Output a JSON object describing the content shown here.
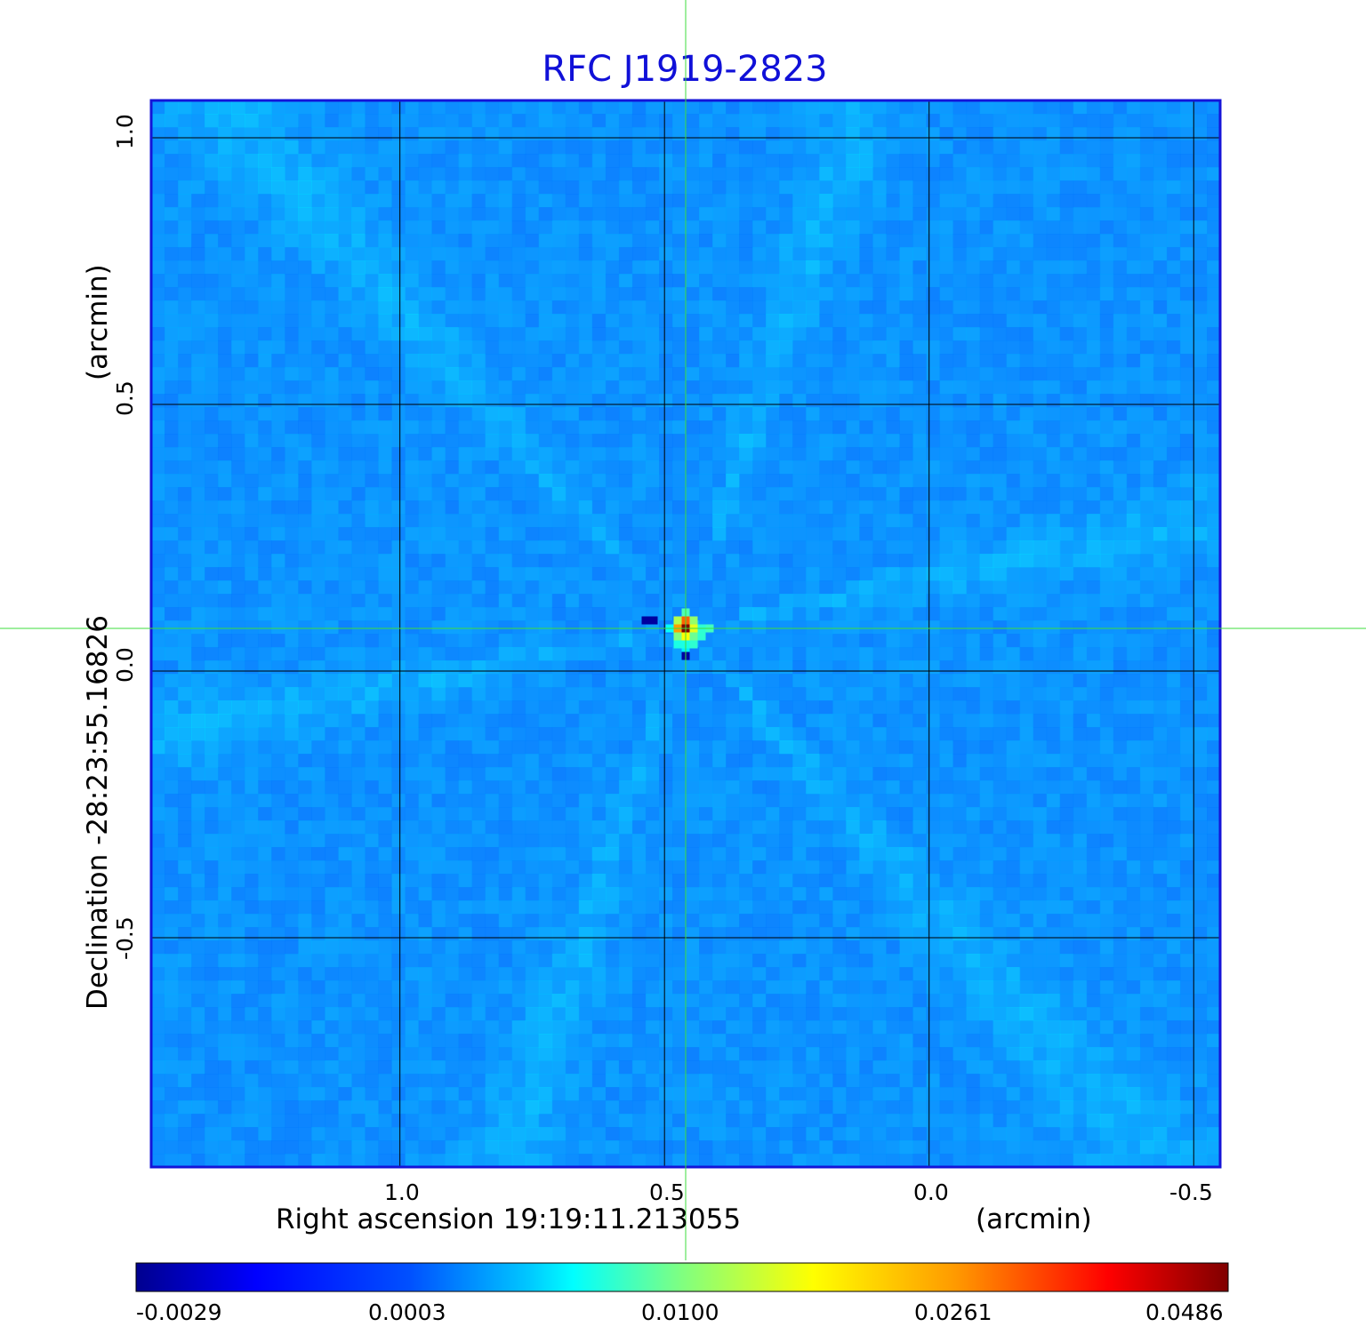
{
  "chart_data": {
    "type": "heatmap",
    "title": "RFC J1919-2823",
    "xlabel": "Right ascension  19:19:11.213055",
    "xunit": "(arcmin)",
    "ylabel": "Declination  -28:23:55.16826",
    "yunit": "(arcmin)",
    "x_ticks": [
      "1.0",
      "0.5",
      "0.0",
      "-0.5"
    ],
    "y_ticks": [
      "1.0",
      "0.5",
      "0.0",
      "-0.5"
    ],
    "x_range": [
      1.47,
      -0.55
    ],
    "y_range": [
      -0.93,
      1.07
    ],
    "grid": true,
    "colormap": "jet",
    "colorbar_ticks": [
      "-0.0029",
      "0.0003",
      "0.0100",
      "0.0261",
      "0.0486"
    ],
    "colorbar_range": [
      -0.0029,
      0.0486
    ],
    "crosshair": {
      "x": 0.46,
      "y": 0.08,
      "color": "#3ddc3d"
    },
    "peak": {
      "x": 0.46,
      "y": 0.08,
      "value": 0.0486
    },
    "colors": {
      "title": "#1010d8",
      "frame": "#1414d8",
      "grid": "#000000",
      "background_map": "#1e90ff"
    }
  }
}
